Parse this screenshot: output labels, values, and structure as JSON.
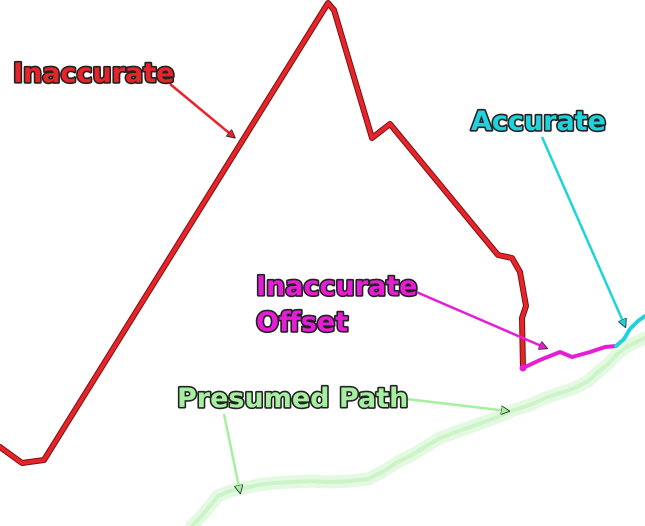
{
  "labels": {
    "inaccurate": "Inaccurate",
    "accurate": "Accurate",
    "inaccurate_offset_line1": "Inaccurate",
    "inaccurate_offset_line2": "Offset",
    "presumed_path": "Presumed Path"
  },
  "colors": {
    "inaccurate": "#e8242b",
    "accurate": "#1fd3dc",
    "inaccurate_offset": "#e51ed6",
    "presumed_path": "#a6eea0",
    "presumed_path_glow": "#e4f9e2",
    "text_outline": "#222222",
    "background": "#ffffff"
  }
}
